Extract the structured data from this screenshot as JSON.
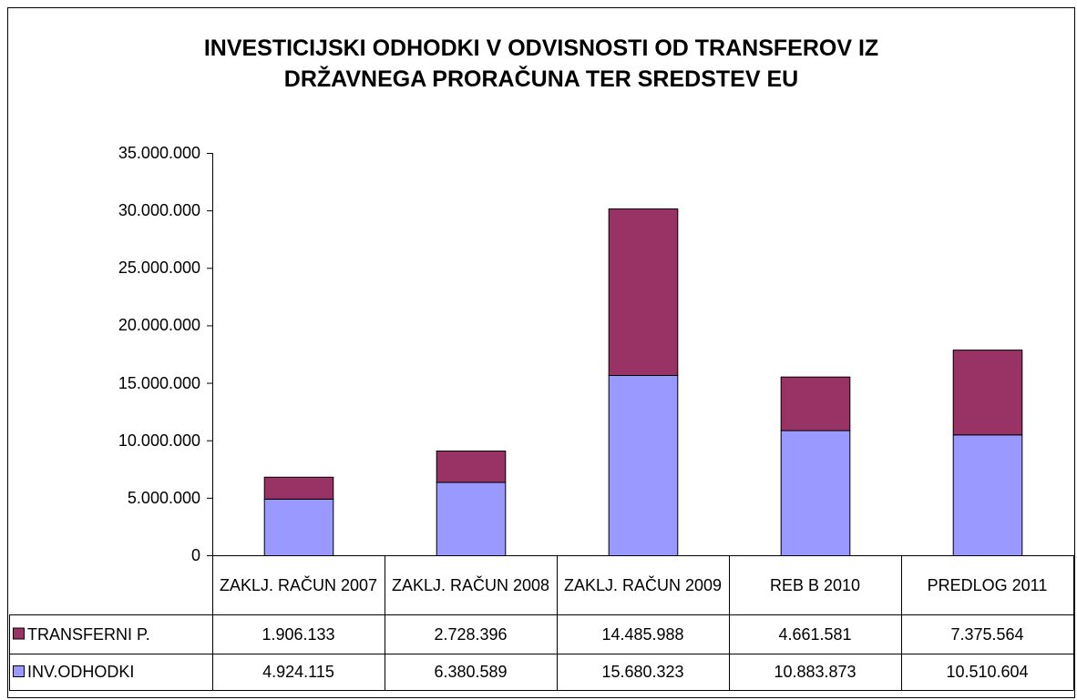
{
  "chart_data": {
    "type": "bar",
    "stacked": true,
    "title": [
      "INVESTICIJSKI ODHODKI V ODVISNOSTI OD TRANSFEROV IZ",
      "DRŽAVNEGA PRORAČUNA TER SREDSTEV EU"
    ],
    "categories": [
      "ZAKLJ. RAČUN 2007",
      "ZAKLJ. RAČUN 2008",
      "ZAKLJ. RAČUN 2009",
      "REB B 2010",
      "PREDLOG 2011"
    ],
    "series": [
      {
        "name": "TRANSFERNI P.",
        "color": "#993366",
        "values": [
          1906133,
          2728396,
          14485988,
          4661581,
          7375564
        ],
        "value_labels": [
          "1.906.133",
          "2.728.396",
          "14.485.988",
          "4.661.581",
          "7.375.564"
        ]
      },
      {
        "name": "INV.ODHODKI",
        "color": "#9999ff",
        "values": [
          4924115,
          6380589,
          15680323,
          10883873,
          10510604
        ],
        "value_labels": [
          "4.924.115",
          "6.380.589",
          "15.680.323",
          "10.883.873",
          "10.510.604"
        ]
      }
    ],
    "ylim": [
      0,
      35000000
    ],
    "yticks": [
      0,
      {
        "value": 5000000,
        "label": "5.000.000"
      },
      {
        "value": 10000000,
        "label": "10.000.000"
      },
      {
        "value": 15000000,
        "label": "15.000.000"
      },
      {
        "value": 20000000,
        "label": "20.000.000"
      },
      {
        "value": 25000000,
        "label": "25.000.000"
      },
      {
        "value": 30000000,
        "label": "30.000.000"
      },
      {
        "value": 35000000,
        "label": "35.000.000"
      }
    ],
    "grid": false,
    "data_table": true
  }
}
